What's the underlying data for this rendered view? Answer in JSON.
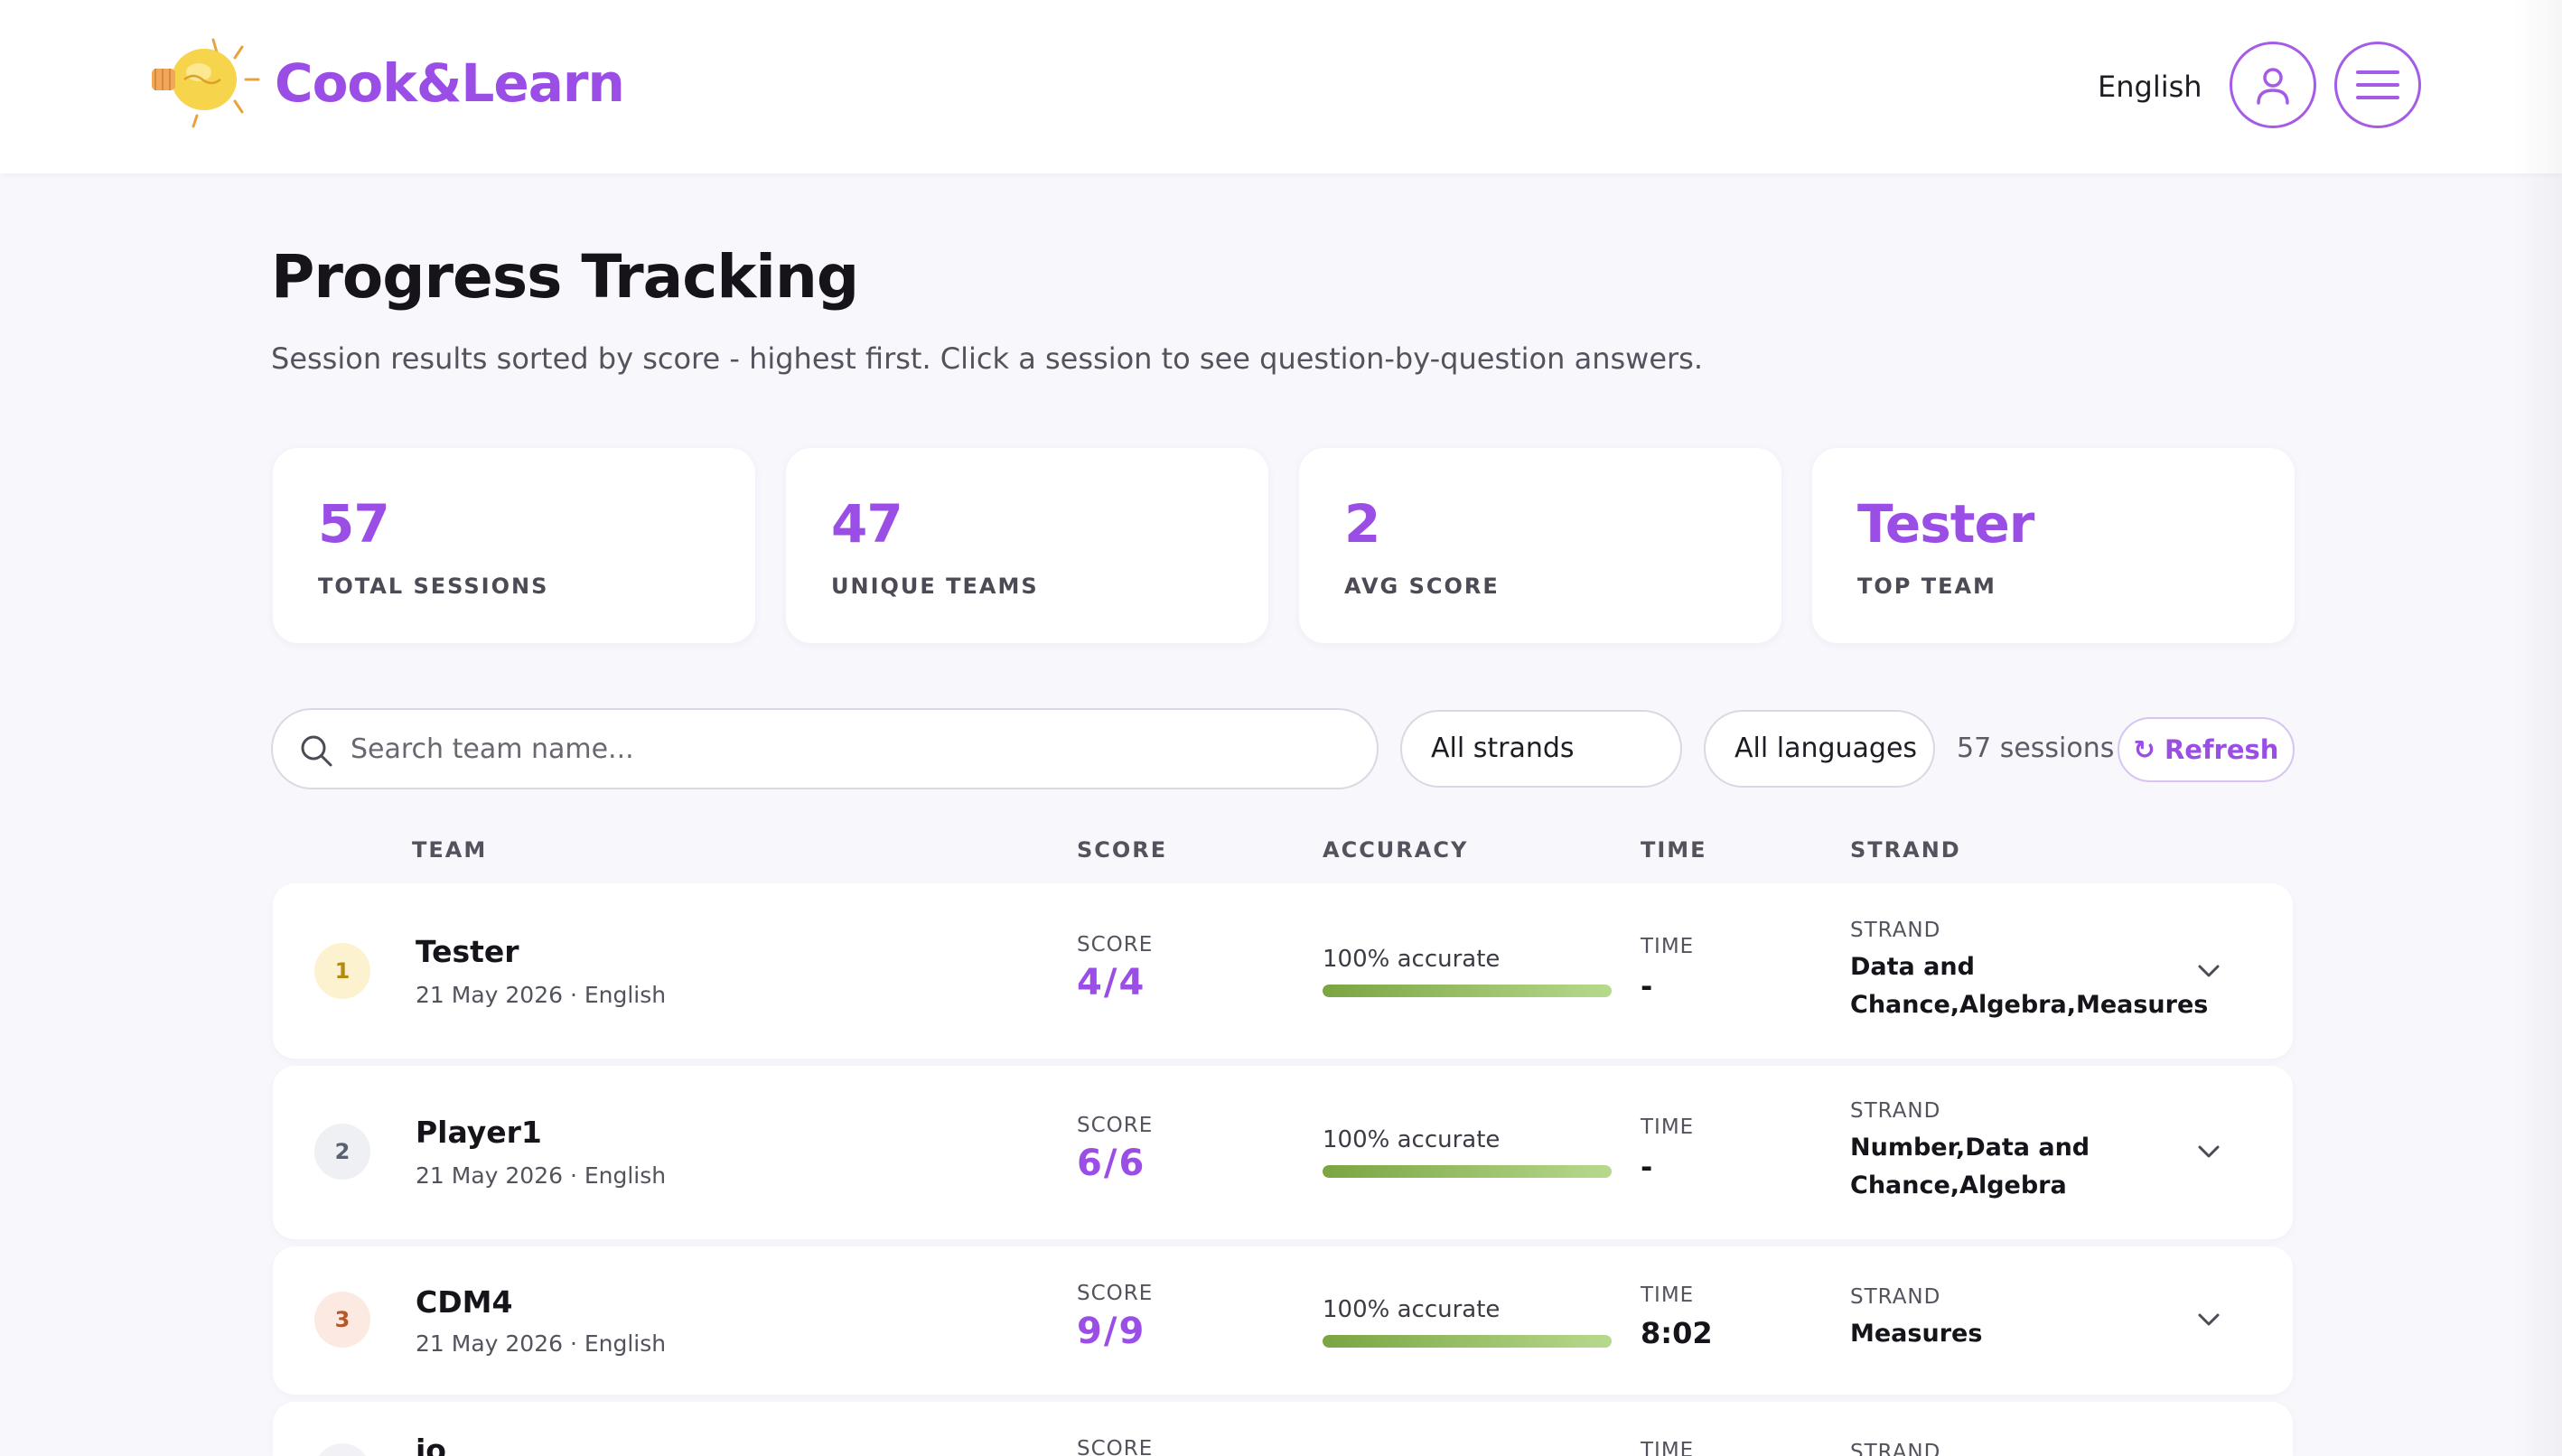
{
  "header": {
    "brand": "Cook&Learn",
    "language": "English",
    "user_icon": "user-icon",
    "menu_icon": "hamburger-menu-icon",
    "accent_color": "#9b4ee6"
  },
  "page": {
    "title": "Progress Tracking",
    "subtitle": "Session results sorted by score - highest first. Click a session to see question-by-question answers."
  },
  "stats": [
    {
      "value": "57",
      "label": "TOTAL SESSIONS"
    },
    {
      "value": "47",
      "label": "UNIQUE TEAMS"
    },
    {
      "value": "2",
      "label": "AVG SCORE"
    },
    {
      "value": "Tester",
      "label": "TOP TEAM"
    }
  ],
  "filters": {
    "search_placeholder": "Search team name...",
    "strand_selected": "All strands",
    "language_selected": "All languages",
    "session_count": "57 sessions",
    "refresh_label": "↻ Refresh"
  },
  "table": {
    "headers": {
      "team": "TEAM",
      "score": "SCORE",
      "accuracy": "ACCURACY",
      "time": "TIME",
      "strand": "STRAND"
    },
    "cell_labels": {
      "score": "SCORE",
      "time": "TIME",
      "strand": "STRAND"
    },
    "rows": [
      {
        "rank": "1",
        "team": "Tester",
        "meta": "21 May 2026 · English",
        "score": "4/4",
        "accuracy_text": "100% accurate",
        "accuracy": 1.0,
        "time": "-",
        "strand": "Data and Chance,Algebra,Measures"
      },
      {
        "rank": "2",
        "team": "Player1",
        "meta": "21 May 2026 · English",
        "score": "6/6",
        "accuracy_text": "100% accurate",
        "accuracy": 1.0,
        "time": "-",
        "strand": "Number,Data and Chance,Algebra"
      },
      {
        "rank": "3",
        "team": "CDM4",
        "meta": "21 May 2026 · English",
        "score": "9/9",
        "accuracy_text": "100% accurate",
        "accuracy": 1.0,
        "time": "8:02",
        "strand": "Measures"
      },
      {
        "rank": "",
        "team": "jo",
        "meta": "",
        "score": "",
        "accuracy_text": "",
        "accuracy": 0,
        "time": "",
        "strand": ""
      }
    ]
  }
}
